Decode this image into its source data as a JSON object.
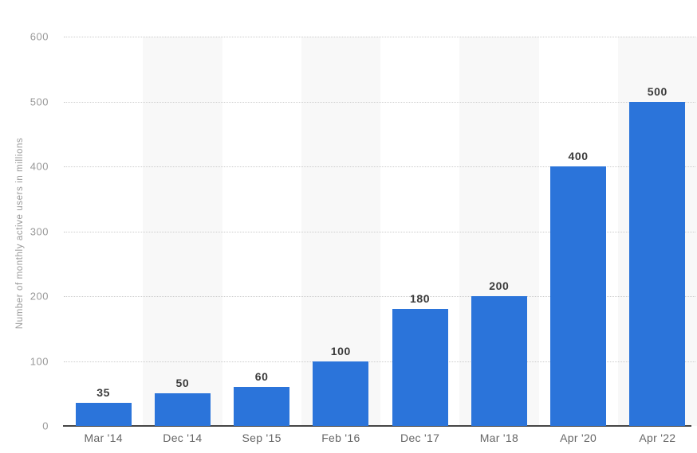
{
  "chart_data": {
    "type": "bar",
    "categories": [
      "Mar '14",
      "Dec '14",
      "Sep '15",
      "Feb '16",
      "Dec '17",
      "Mar '18",
      "Apr '20",
      "Apr '22"
    ],
    "values": [
      35,
      50,
      60,
      100,
      180,
      200,
      400,
      500
    ],
    "value_labels": [
      "35",
      "50",
      "60",
      "100",
      "180",
      "200",
      "400",
      "500"
    ],
    "title": "",
    "xlabel": "",
    "ylabel": "Number of monthly active users in millions",
    "ylim": [
      0,
      600
    ],
    "yticks": [
      0,
      100,
      200,
      300,
      400,
      500,
      600
    ],
    "grid": "horizontal-dotted",
    "legend_position": "none",
    "band_pattern": "alternating-columns"
  },
  "colors": {
    "bar": "#2b74da",
    "column_band": "#f8f8f8",
    "gridline": "#cccccc",
    "axis_line": "#454545",
    "y_tick_label": "#999999",
    "x_tick_label": "#666666",
    "value_label": "#3b3b3b",
    "background": "#ffffff"
  }
}
